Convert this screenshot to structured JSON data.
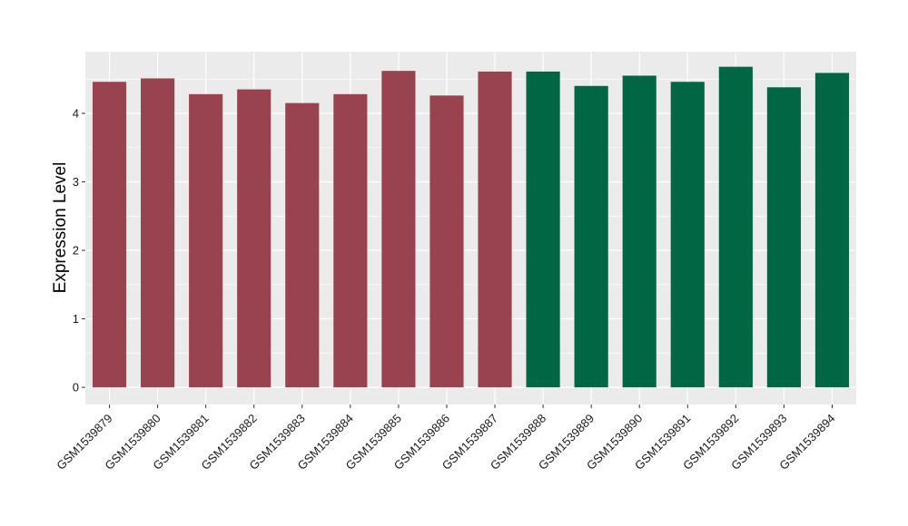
{
  "chart_data": {
    "type": "bar",
    "title": "",
    "xlabel": "",
    "ylabel": "Expression Level",
    "ylim": [
      -0.25,
      4.9
    ],
    "yticks": [
      0,
      1,
      2,
      3,
      4
    ],
    "grid": true,
    "legend": "none",
    "categories": [
      "GSM1539879",
      "GSM1539880",
      "GSM1539881",
      "GSM1539882",
      "GSM1539883",
      "GSM1539884",
      "GSM1539885",
      "GSM1539886",
      "GSM1539887",
      "GSM1539888",
      "GSM1539889",
      "GSM1539890",
      "GSM1539891",
      "GSM1539892",
      "GSM1539893",
      "GSM1539894"
    ],
    "values": [
      4.46,
      4.51,
      4.28,
      4.35,
      4.15,
      4.28,
      4.62,
      4.26,
      4.61,
      4.61,
      4.4,
      4.55,
      4.46,
      4.68,
      4.38,
      4.59
    ],
    "group_colors": [
      "#9a4350",
      "#9a4350",
      "#9a4350",
      "#9a4350",
      "#9a4350",
      "#9a4350",
      "#9a4350",
      "#9a4350",
      "#9a4350",
      "#006644",
      "#006644",
      "#006644",
      "#006644",
      "#006644",
      "#006644",
      "#006644"
    ],
    "panel_background": "#ebebeb",
    "grid_color": "#ffffff"
  }
}
